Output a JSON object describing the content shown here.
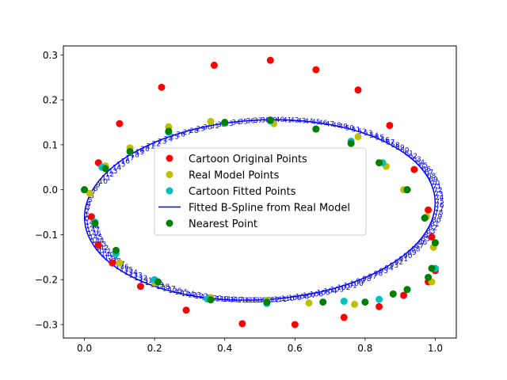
{
  "chart_data": {
    "type": "scatter",
    "title": "",
    "xlabel": "",
    "ylabel": "",
    "xlim": [
      -0.06,
      1.06
    ],
    "ylim": [
      -0.33,
      0.32
    ],
    "xticks": [
      0.0,
      0.2,
      0.4,
      0.6,
      0.8,
      1.0
    ],
    "xtick_labels": [
      "0.0",
      "0.2",
      "0.4",
      "0.6",
      "0.8",
      "1.0"
    ],
    "yticks": [
      -0.3,
      -0.2,
      -0.1,
      0.0,
      0.1,
      0.2,
      0.3
    ],
    "ytick_labels": [
      "−0.3",
      "−0.2",
      "−0.1",
      "0.0",
      "0.1",
      "0.2",
      "0.3"
    ],
    "grid": false,
    "legend_position": "center",
    "legend": [
      {
        "label": "Cartoon Original Points",
        "kind": "marker",
        "color": "#ff0000"
      },
      {
        "label": "Real Model Points",
        "kind": "marker",
        "color": "#bfbf00"
      },
      {
        "label": "Cartoon Fitted Points",
        "kind": "marker",
        "color": "#00bfbf"
      },
      {
        "label": "Fitted B-Spline from Real Model",
        "kind": "line",
        "color": "#0000ff"
      },
      {
        "label": "Nearest Point",
        "kind": "marker",
        "color": "#008000"
      }
    ],
    "ellipse": {
      "cx": 0.5,
      "cy": -0.045,
      "rx": 0.5,
      "ry": 0.2,
      "rotation_deg": 2.2
    },
    "colors": {
      "cartoon_original": "#ff0000",
      "real_model": "#bfbf00",
      "cartoon_fitted": "#00bfbf",
      "spline": "#0000ff",
      "nearest": "#008000",
      "index_labels": "#0000ff"
    },
    "series": [
      {
        "name": "Cartoon Original Points",
        "x": [
          1.0,
          0.99,
          0.98,
          0.94,
          0.87,
          0.78,
          0.66,
          0.53,
          0.37,
          0.22,
          0.1,
          0.04,
          0.02,
          0.04,
          0.08,
          0.16,
          0.29,
          0.45,
          0.6,
          0.74,
          0.84,
          0.91,
          0.98
        ],
        "y": [
          -0.18,
          -0.105,
          -0.045,
          0.045,
          0.143,
          0.222,
          0.267,
          0.288,
          0.277,
          0.228,
          0.147,
          0.06,
          -0.06,
          -0.123,
          -0.163,
          -0.215,
          -0.268,
          -0.298,
          -0.3,
          -0.284,
          -0.26,
          -0.235,
          -0.205
        ]
      },
      {
        "name": "Real Model Points",
        "x": [
          0.015,
          0.06,
          0.13,
          0.24,
          0.36,
          0.54,
          0.66,
          0.78,
          0.86,
          0.91,
          0.975,
          0.995,
          0.99,
          0.88,
          0.77,
          0.64,
          0.52,
          0.36,
          0.2,
          0.1
        ],
        "y": [
          -0.008,
          0.053,
          0.093,
          0.14,
          0.152,
          0.147,
          0.135,
          0.118,
          0.052,
          0.0,
          -0.06,
          -0.128,
          -0.205,
          -0.232,
          -0.255,
          -0.252,
          -0.246,
          -0.24,
          -0.207,
          -0.163
        ]
      },
      {
        "name": "Cartoon Fitted Points",
        "x": [
          0.0,
          0.05,
          0.13,
          0.24,
          0.4,
          0.53,
          0.66,
          0.76,
          0.85,
          0.92,
          0.97,
          1.0,
          1.0,
          0.92,
          0.84,
          0.74,
          0.52,
          0.35,
          0.2,
          0.09,
          0.03
        ],
        "y": [
          0.0,
          0.05,
          0.085,
          0.128,
          0.148,
          0.153,
          0.135,
          0.108,
          0.06,
          0.0,
          -0.063,
          -0.118,
          -0.175,
          -0.222,
          -0.244,
          -0.248,
          -0.253,
          -0.243,
          -0.2,
          -0.142,
          -0.072
        ]
      },
      {
        "name": "Nearest Point",
        "x": [
          0.0,
          0.06,
          0.13,
          0.24,
          0.4,
          0.53,
          0.66,
          0.76,
          0.84,
          0.92,
          0.97,
          1.0,
          0.99,
          0.98,
          0.92,
          0.88,
          0.8,
          0.68,
          0.52,
          0.36,
          0.21,
          0.09,
          0.03
        ],
        "y": [
          0.0,
          0.047,
          0.085,
          0.13,
          0.15,
          0.155,
          0.135,
          0.103,
          0.06,
          0.0,
          -0.063,
          -0.118,
          -0.175,
          -0.195,
          -0.222,
          -0.232,
          -0.25,
          -0.25,
          -0.25,
          -0.245,
          -0.205,
          -0.135,
          -0.075
        ]
      }
    ],
    "index_labels": {
      "count": 150,
      "texts": [
        "0",
        "1",
        "2",
        "3",
        "4",
        "5",
        "6",
        "7",
        "8",
        "9",
        "10",
        "11",
        "12",
        "13",
        "14",
        "15",
        "16",
        "17",
        "18",
        "19",
        "20",
        "21",
        "22",
        "23",
        "24",
        "25",
        "26",
        "27",
        "28",
        "29",
        "30",
        "31",
        "32",
        "33",
        "34",
        "35",
        "36",
        "37",
        "38",
        "39",
        "40",
        "41",
        "42",
        "43",
        "44",
        "45",
        "46",
        "47",
        "48",
        "49",
        "50",
        "51",
        "52",
        "53",
        "54",
        "55",
        "56",
        "57",
        "58",
        "59",
        "60",
        "61",
        "62",
        "63",
        "64",
        "65",
        "66",
        "67",
        "68",
        "69",
        "70",
        "71",
        "72",
        "73",
        "74",
        "75",
        "76",
        "77",
        "78",
        "79",
        "80",
        "81",
        "82",
        "83",
        "84",
        "85",
        "86",
        "87",
        "88",
        "89",
        "90",
        "91",
        "92",
        "93",
        "94",
        "95",
        "96",
        "97",
        "98",
        "99",
        "100",
        "101",
        "102",
        "103",
        "104",
        "105",
        "106",
        "107",
        "108",
        "109",
        "110",
        "111",
        "112",
        "113",
        "114",
        "115",
        "116",
        "117",
        "118",
        "119",
        "120",
        "121",
        "122",
        "123",
        "124",
        "125",
        "126",
        "127",
        "128",
        "129",
        "130",
        "131",
        "132",
        "133",
        "134",
        "135",
        "136",
        "137",
        "138",
        "139",
        "140",
        "141",
        "142",
        "143",
        "144",
        "145",
        "146",
        "147",
        "148",
        "149"
      ]
    }
  }
}
